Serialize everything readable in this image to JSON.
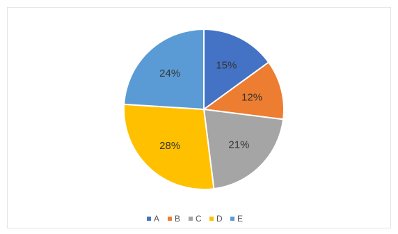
{
  "chart_data": {
    "type": "pie",
    "categories": [
      "A",
      "B",
      "C",
      "D",
      "E"
    ],
    "values": [
      15,
      12,
      21,
      28,
      24
    ],
    "labels": [
      "15%",
      "12%",
      "21%",
      "28%",
      "24%"
    ],
    "colors": [
      "#4472C4",
      "#ED7D31",
      "#A5A5A5",
      "#FFC000",
      "#5B9BD5"
    ],
    "legend_position": "bottom",
    "start_angle": "top, clockwise"
  }
}
